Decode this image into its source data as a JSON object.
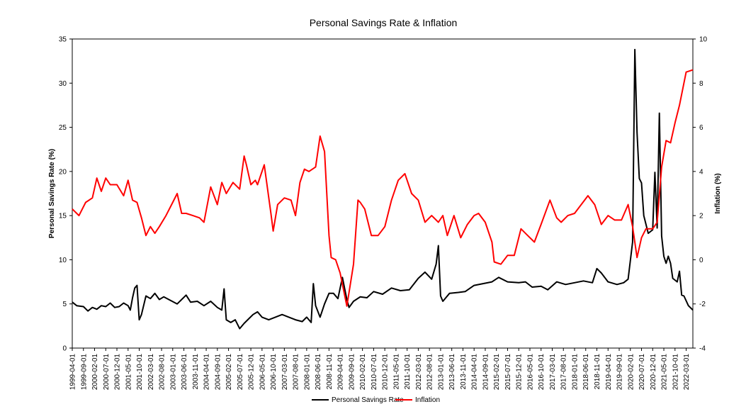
{
  "chart_data": {
    "type": "line",
    "title": "Personal Savings Rate & Inflation",
    "xlabel": "",
    "ylabel_left": "Personal Savings Rate (%)",
    "ylabel_right": "Inflation (%)",
    "ylim_left": [
      0,
      35
    ],
    "ylim_right": [
      -4,
      10
    ],
    "yticks_left": [
      0,
      5,
      10,
      15,
      20,
      25,
      30,
      35
    ],
    "yticks_right": [
      -4,
      -2,
      0,
      2,
      4,
      6,
      8,
      10
    ],
    "x_start": "1999-04-01",
    "x_end": "2022-06-01",
    "x_tick_labels": [
      "1999-04-01",
      "1999-09-01",
      "2000-02-01",
      "2000-07-01",
      "2000-12-01",
      "2001-05-01",
      "2001-10-01",
      "2002-03-01",
      "2002-08-01",
      "2003-01-01",
      "2003-06-01",
      "2003-11-01",
      "2004-04-01",
      "2004-09-01",
      "2005-02-01",
      "2005-07-01",
      "2005-12-01",
      "2006-05-01",
      "2006-10-01",
      "2007-03-01",
      "2007-08-01",
      "2008-01-01",
      "2008-06-01",
      "2008-11-01",
      "2009-04-01",
      "2009-09-01",
      "2010-02-01",
      "2010-07-01",
      "2010-12-01",
      "2011-05-01",
      "2011-10-01",
      "2012-03-01",
      "2012-08-01",
      "2013-01-01",
      "2013-06-01",
      "2013-11-01",
      "2014-04-01",
      "2014-09-01",
      "2015-02-01",
      "2015-07-01",
      "2015-12-01",
      "2016-05-01",
      "2016-10-01",
      "2017-03-01",
      "2017-08-01",
      "2018-01-01",
      "2018-06-01",
      "2018-11-01",
      "2019-04-01",
      "2019-09-01",
      "2020-02-01",
      "2020-07-01",
      "2020-12-01",
      "2021-05-01",
      "2021-10-01",
      "2022-03-01"
    ],
    "grid": false,
    "legend_position": "bottom",
    "series": [
      {
        "name": "Personal Savings Rate",
        "axis": "left",
        "color": "#000000",
        "points": [
          [
            "1999-04-01",
            5.2
          ],
          [
            "1999-06-01",
            4.8
          ],
          [
            "1999-09-01",
            4.7
          ],
          [
            "1999-11-01",
            4.2
          ],
          [
            "2000-01-01",
            4.6
          ],
          [
            "2000-03-01",
            4.4
          ],
          [
            "2000-05-01",
            4.8
          ],
          [
            "2000-07-01",
            4.7
          ],
          [
            "2000-09-01",
            5.1
          ],
          [
            "2000-11-01",
            4.6
          ],
          [
            "2001-01-01",
            4.7
          ],
          [
            "2001-03-01",
            5.1
          ],
          [
            "2001-05-01",
            4.8
          ],
          [
            "2001-06-01",
            4.3
          ],
          [
            "2001-07-01",
            5.7
          ],
          [
            "2001-08-01",
            6.8
          ],
          [
            "2001-09-01",
            7.1
          ],
          [
            "2001-10-01",
            3.2
          ],
          [
            "2001-11-01",
            3.8
          ],
          [
            "2002-01-01",
            5.9
          ],
          [
            "2002-03-01",
            5.6
          ],
          [
            "2002-05-01",
            6.2
          ],
          [
            "2002-07-01",
            5.5
          ],
          [
            "2002-09-01",
            5.8
          ],
          [
            "2002-12-01",
            5.4
          ],
          [
            "2003-03-01",
            5.0
          ],
          [
            "2003-05-01",
            5.5
          ],
          [
            "2003-07-01",
            6.0
          ],
          [
            "2003-09-01",
            5.2
          ],
          [
            "2003-12-01",
            5.3
          ],
          [
            "2004-03-01",
            4.8
          ],
          [
            "2004-06-01",
            5.3
          ],
          [
            "2004-09-01",
            4.6
          ],
          [
            "2004-11-01",
            4.3
          ],
          [
            "2004-12-01",
            6.7
          ],
          [
            "2005-01-01",
            3.2
          ],
          [
            "2005-03-01",
            2.9
          ],
          [
            "2005-05-01",
            3.2
          ],
          [
            "2005-07-01",
            2.2
          ],
          [
            "2005-09-01",
            2.8
          ],
          [
            "2005-11-01",
            3.3
          ],
          [
            "2006-01-01",
            3.8
          ],
          [
            "2006-03-01",
            4.1
          ],
          [
            "2006-05-01",
            3.5
          ],
          [
            "2006-08-01",
            3.2
          ],
          [
            "2006-11-01",
            3.5
          ],
          [
            "2007-02-01",
            3.8
          ],
          [
            "2007-05-01",
            3.5
          ],
          [
            "2007-08-01",
            3.2
          ],
          [
            "2007-11-01",
            3.0
          ],
          [
            "2008-01-01",
            3.5
          ],
          [
            "2008-03-01",
            2.9
          ],
          [
            "2008-04-01",
            7.3
          ],
          [
            "2008-05-01",
            4.8
          ],
          [
            "2008-07-01",
            3.5
          ],
          [
            "2008-09-01",
            5.0
          ],
          [
            "2008-11-01",
            6.2
          ],
          [
            "2009-01-01",
            6.2
          ],
          [
            "2009-03-01",
            5.6
          ],
          [
            "2009-05-01",
            8.0
          ],
          [
            "2009-07-01",
            5.5
          ],
          [
            "2009-08-01",
            4.6
          ],
          [
            "2009-10-01",
            5.3
          ],
          [
            "2010-01-01",
            5.8
          ],
          [
            "2010-04-01",
            5.7
          ],
          [
            "2010-07-01",
            6.4
          ],
          [
            "2010-11-01",
            6.1
          ],
          [
            "2011-03-01",
            6.8
          ],
          [
            "2011-07-01",
            6.5
          ],
          [
            "2011-11-01",
            6.6
          ],
          [
            "2012-03-01",
            7.9
          ],
          [
            "2012-06-01",
            8.6
          ],
          [
            "2012-09-01",
            7.8
          ],
          [
            "2012-11-01",
            9.5
          ],
          [
            "2012-12-01",
            11.6
          ],
          [
            "2013-01-01",
            5.9
          ],
          [
            "2013-02-01",
            5.3
          ],
          [
            "2013-05-01",
            6.2
          ],
          [
            "2013-09-01",
            6.3
          ],
          [
            "2013-12-01",
            6.4
          ],
          [
            "2014-04-01",
            7.1
          ],
          [
            "2014-08-01",
            7.3
          ],
          [
            "2014-12-01",
            7.5
          ],
          [
            "2015-03-01",
            8.0
          ],
          [
            "2015-07-01",
            7.5
          ],
          [
            "2015-12-01",
            7.4
          ],
          [
            "2016-03-01",
            7.5
          ],
          [
            "2016-06-01",
            6.9
          ],
          [
            "2016-10-01",
            7.0
          ],
          [
            "2017-01-01",
            6.6
          ],
          [
            "2017-05-01",
            7.5
          ],
          [
            "2017-09-01",
            7.2
          ],
          [
            "2018-01-01",
            7.4
          ],
          [
            "2018-05-01",
            7.6
          ],
          [
            "2018-09-01",
            7.4
          ],
          [
            "2018-11-01",
            9.0
          ],
          [
            "2019-01-01",
            8.5
          ],
          [
            "2019-04-01",
            7.5
          ],
          [
            "2019-08-01",
            7.2
          ],
          [
            "2019-11-01",
            7.4
          ],
          [
            "2020-01-01",
            7.8
          ],
          [
            "2020-03-01",
            12.0
          ],
          [
            "2020-04-01",
            33.8
          ],
          [
            "2020-05-01",
            24.4
          ],
          [
            "2020-06-01",
            19.2
          ],
          [
            "2020-07-01",
            18.7
          ],
          [
            "2020-08-01",
            15.0
          ],
          [
            "2020-10-01",
            13.0
          ],
          [
            "2020-12-01",
            13.4
          ],
          [
            "2021-01-01",
            19.9
          ],
          [
            "2021-02-01",
            13.6
          ],
          [
            "2021-03-01",
            26.6
          ],
          [
            "2021-04-01",
            12.7
          ],
          [
            "2021-05-01",
            10.4
          ],
          [
            "2021-06-01",
            9.6
          ],
          [
            "2021-07-01",
            10.4
          ],
          [
            "2021-08-01",
            9.6
          ],
          [
            "2021-09-01",
            7.9
          ],
          [
            "2021-11-01",
            7.5
          ],
          [
            "2021-12-01",
            8.7
          ],
          [
            "2022-01-01",
            6.0
          ],
          [
            "2022-02-01",
            5.9
          ],
          [
            "2022-04-01",
            4.8
          ],
          [
            "2022-06-01",
            4.3
          ]
        ]
      },
      {
        "name": "Inflation",
        "axis": "right",
        "color": "#ff0000",
        "points": [
          [
            "1999-04-01",
            2.3
          ],
          [
            "1999-07-01",
            2.0
          ],
          [
            "1999-10-01",
            2.6
          ],
          [
            "2000-01-01",
            2.8
          ],
          [
            "2000-03-01",
            3.7
          ],
          [
            "2000-05-01",
            3.1
          ],
          [
            "2000-07-01",
            3.7
          ],
          [
            "2000-09-01",
            3.4
          ],
          [
            "2000-12-01",
            3.4
          ],
          [
            "2001-03-01",
            2.9
          ],
          [
            "2001-05-01",
            3.6
          ],
          [
            "2001-07-01",
            2.7
          ],
          [
            "2001-09-01",
            2.6
          ],
          [
            "2001-11-01",
            1.9
          ],
          [
            "2002-01-01",
            1.1
          ],
          [
            "2002-03-01",
            1.5
          ],
          [
            "2002-05-01",
            1.2
          ],
          [
            "2002-07-01",
            1.5
          ],
          [
            "2002-10-01",
            2.0
          ],
          [
            "2003-01-01",
            2.6
          ],
          [
            "2003-03-01",
            3.0
          ],
          [
            "2003-05-01",
            2.1
          ],
          [
            "2003-07-01",
            2.1
          ],
          [
            "2003-10-01",
            2.0
          ],
          [
            "2004-01-01",
            1.9
          ],
          [
            "2004-03-01",
            1.7
          ],
          [
            "2004-06-01",
            3.3
          ],
          [
            "2004-09-01",
            2.5
          ],
          [
            "2004-11-01",
            3.5
          ],
          [
            "2005-01-01",
            3.0
          ],
          [
            "2005-04-01",
            3.5
          ],
          [
            "2005-07-01",
            3.2
          ],
          [
            "2005-09-01",
            4.7
          ],
          [
            "2005-10-01",
            4.3
          ],
          [
            "2005-12-01",
            3.4
          ],
          [
            "2006-02-01",
            3.6
          ],
          [
            "2006-03-01",
            3.4
          ],
          [
            "2006-06-01",
            4.3
          ],
          [
            "2006-09-01",
            2.1
          ],
          [
            "2006-10-01",
            1.3
          ],
          [
            "2006-12-01",
            2.5
          ],
          [
            "2007-03-01",
            2.8
          ],
          [
            "2007-06-01",
            2.7
          ],
          [
            "2007-08-01",
            2.0
          ],
          [
            "2007-10-01",
            3.5
          ],
          [
            "2007-12-01",
            4.1
          ],
          [
            "2008-02-01",
            4.0
          ],
          [
            "2008-05-01",
            4.2
          ],
          [
            "2008-07-01",
            5.6
          ],
          [
            "2008-09-01",
            4.9
          ],
          [
            "2008-11-01",
            1.1
          ],
          [
            "2008-12-01",
            0.1
          ],
          [
            "2009-02-01",
            0.0
          ],
          [
            "2009-04-01",
            -0.6
          ],
          [
            "2009-07-01",
            -2.1
          ],
          [
            "2009-10-01",
            -0.2
          ],
          [
            "2009-12-01",
            2.7
          ],
          [
            "2010-01-01",
            2.6
          ],
          [
            "2010-03-01",
            2.3
          ],
          [
            "2010-06-01",
            1.1
          ],
          [
            "2010-09-01",
            1.1
          ],
          [
            "2010-12-01",
            1.5
          ],
          [
            "2011-03-01",
            2.7
          ],
          [
            "2011-06-01",
            3.6
          ],
          [
            "2011-09-01",
            3.9
          ],
          [
            "2011-12-01",
            3.0
          ],
          [
            "2012-03-01",
            2.7
          ],
          [
            "2012-06-01",
            1.7
          ],
          [
            "2012-09-01",
            2.0
          ],
          [
            "2012-12-01",
            1.7
          ],
          [
            "2013-02-01",
            2.0
          ],
          [
            "2013-04-01",
            1.1
          ],
          [
            "2013-07-01",
            2.0
          ],
          [
            "2013-10-01",
            1.0
          ],
          [
            "2014-01-01",
            1.6
          ],
          [
            "2014-04-01",
            2.0
          ],
          [
            "2014-06-01",
            2.1
          ],
          [
            "2014-09-01",
            1.7
          ],
          [
            "2014-12-01",
            0.8
          ],
          [
            "2015-01-01",
            -0.1
          ],
          [
            "2015-04-01",
            -0.2
          ],
          [
            "2015-07-01",
            0.2
          ],
          [
            "2015-10-01",
            0.2
          ],
          [
            "2016-01-01",
            1.4
          ],
          [
            "2016-04-01",
            1.1
          ],
          [
            "2016-07-01",
            0.8
          ],
          [
            "2016-10-01",
            1.6
          ],
          [
            "2017-02-01",
            2.7
          ],
          [
            "2017-05-01",
            1.9
          ],
          [
            "2017-07-01",
            1.7
          ],
          [
            "2017-10-01",
            2.0
          ],
          [
            "2018-01-01",
            2.1
          ],
          [
            "2018-04-01",
            2.5
          ],
          [
            "2018-07-01",
            2.9
          ],
          [
            "2018-10-01",
            2.5
          ],
          [
            "2019-01-01",
            1.6
          ],
          [
            "2019-04-01",
            2.0
          ],
          [
            "2019-07-01",
            1.8
          ],
          [
            "2019-10-01",
            1.8
          ],
          [
            "2020-01-01",
            2.5
          ],
          [
            "2020-03-01",
            1.5
          ],
          [
            "2020-05-01",
            0.1
          ],
          [
            "2020-07-01",
            1.0
          ],
          [
            "2020-09-01",
            1.4
          ],
          [
            "2020-12-01",
            1.4
          ],
          [
            "2021-02-01",
            1.7
          ],
          [
            "2021-04-01",
            4.2
          ],
          [
            "2021-06-01",
            5.4
          ],
          [
            "2021-08-01",
            5.3
          ],
          [
            "2021-10-01",
            6.2
          ],
          [
            "2021-12-01",
            7.0
          ],
          [
            "2022-03-01",
            8.5
          ],
          [
            "2022-06-01",
            8.6
          ]
        ]
      }
    ]
  }
}
